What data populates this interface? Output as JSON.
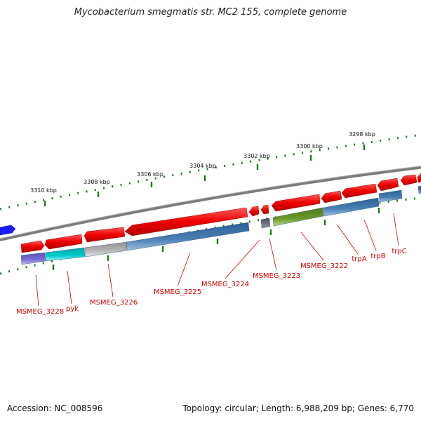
{
  "title": "Mycobacterium smegmatis str. MC2 155, complete genome",
  "footer": {
    "accession": "Accession: NC_008596",
    "summary": "Topology: circular; Length: 6,988,209 bp; Genes: 6,770"
  },
  "colors": {
    "backbone": "#808080",
    "tick": "#1a7a1a",
    "forward_gene": "#ee0000",
    "label": "#cc0000",
    "feature_blue": "#4a80b4"
  },
  "scale_labels": [
    "3310 kbp",
    "3308 kbp",
    "3306 kbp",
    "3304 kbp",
    "3302 kbp",
    "3300 kbp",
    "3298 kbp"
  ],
  "gene_labels": [
    "MSMEG_3228",
    "pyk",
    "MSMEG_3226",
    "MSMEG_3225",
    "MSMEG_3224",
    "MSMEG_3223",
    "MSMEG_3222",
    "trpA",
    "trpB",
    "trpC"
  ]
}
